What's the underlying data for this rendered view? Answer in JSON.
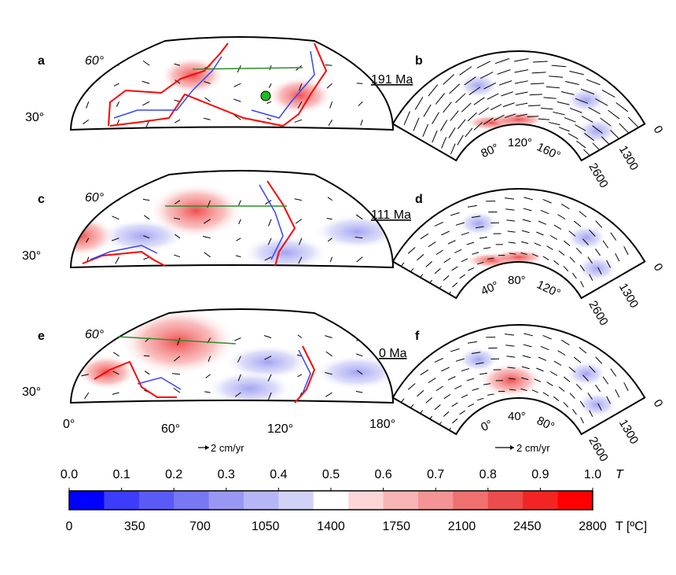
{
  "chart_data": {
    "type": "map",
    "title": "",
    "description_panels": [
      "a",
      "b",
      "c",
      "d",
      "e",
      "f"
    ],
    "map_panels": [
      {
        "label": "a",
        "age": "191 Ma",
        "lat_ticks": [
          "60°",
          "30°"
        ],
        "hot_blobs": [
          {
            "lon": 68,
            "lat": 52,
            "T": 0.62
          },
          {
            "lon": 128,
            "lat": 42,
            "T": 0.62
          }
        ],
        "cold_blobs": []
      },
      {
        "label": "c",
        "age": "111 Ma",
        "lat_ticks": [
          "60°",
          "30°"
        ],
        "hot_blobs": [
          {
            "lon": 70,
            "lat": 52,
            "T": 0.75
          },
          {
            "lon": 5,
            "lat": 40,
            "T": 0.65
          }
        ],
        "cold_blobs": [
          {
            "lon": 40,
            "lat": 40,
            "T": 0.35
          },
          {
            "lon": 160,
            "lat": 42,
            "T": 0.35
          },
          {
            "lon": 120,
            "lat": 32,
            "T": 0.38
          }
        ]
      },
      {
        "label": "e",
        "age": "0 Ma",
        "lat_ticks": [
          "60°",
          "30°"
        ],
        "hot_blobs": [
          {
            "lon": 60,
            "lat": 55,
            "T": 0.85
          },
          {
            "lon": 20,
            "lat": 40,
            "T": 0.6
          }
        ],
        "cold_blobs": [
          {
            "lon": 110,
            "lat": 45,
            "T": 0.35
          },
          {
            "lon": 100,
            "lat": 32,
            "T": 0.35
          },
          {
            "lon": 160,
            "lat": 40,
            "T": 0.38
          }
        ]
      }
    ],
    "section_panels": [
      {
        "label": "b",
        "deg_ticks": [
          "80°",
          "120°",
          "160°"
        ],
        "depth_ticks": [
          "0",
          "1300",
          "2600"
        ]
      },
      {
        "label": "d",
        "deg_ticks": [
          "40°",
          "80°",
          "120°"
        ],
        "depth_ticks": [
          "0",
          "1300",
          "2600"
        ]
      },
      {
        "label": "f",
        "deg_ticks": [
          "0°",
          "40°",
          "80°"
        ],
        "depth_ticks": [
          "0",
          "1300",
          "2600"
        ]
      }
    ],
    "x_axis": {
      "ticks": [
        "0°",
        "60°",
        "120°",
        "180°"
      ],
      "range": [
        0,
        180
      ]
    },
    "velocity_scale": "2 cm/yr",
    "colorbar": {
      "nondim_label": "T",
      "dim_label": "T [ºC]",
      "nondim_ticks": [
        "0.0",
        "0.1",
        "0.2",
        "0.3",
        "0.4",
        "0.5",
        "0.6",
        "0.7",
        "0.8",
        "0.9",
        "1.0"
      ],
      "dim_ticks": [
        "0",
        "350",
        "700",
        "1050",
        "1400",
        "1750",
        "2100",
        "2450",
        "2800"
      ],
      "colors": [
        "#0000ff",
        "#3c3cfb",
        "#5a5af6",
        "#7878f4",
        "#9898f4",
        "#b6b6f6",
        "#d2d2f9",
        "#ffffff",
        "#fcd6d6",
        "#f8b4b4",
        "#f49494",
        "#f07070",
        "#ec4c4c",
        "#f42424",
        "#ff0000"
      ]
    },
    "line_colors": {
      "slab": "#ff0000",
      "continent": "#3344ff",
      "coast": "#aaaaaa",
      "section": "#2c8c2c",
      "tracer": "#22bb22"
    }
  }
}
